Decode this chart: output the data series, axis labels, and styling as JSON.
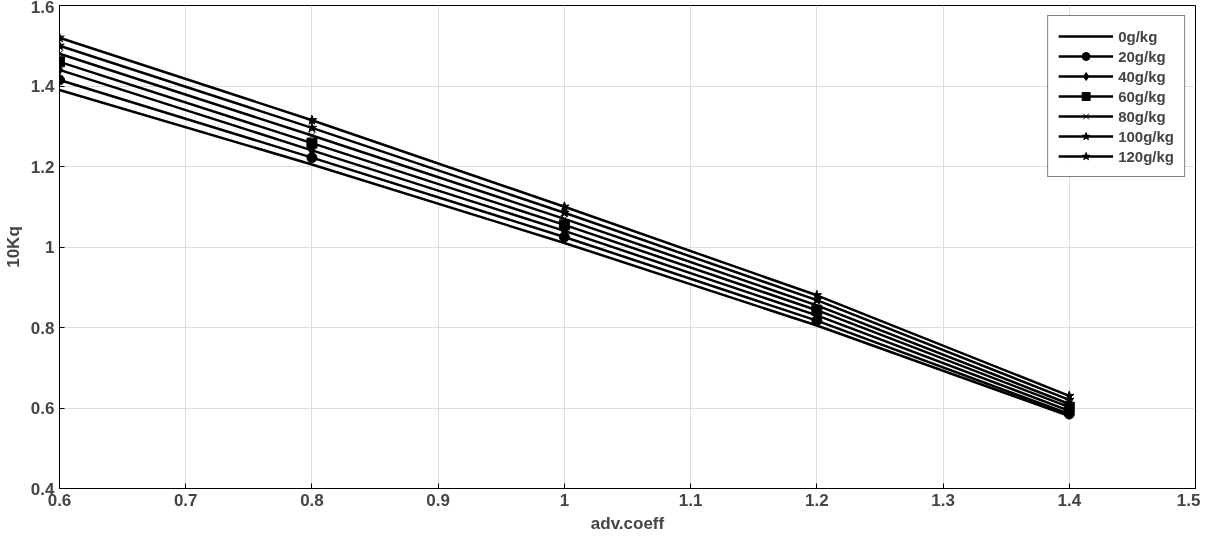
{
  "chart_data": {
    "type": "line",
    "xlabel": "adv.coeff",
    "ylabel": "10Kq",
    "xlim": [
      0.6,
      1.5
    ],
    "ylim": [
      0.4,
      1.6
    ],
    "xticks": [
      0.6,
      0.7,
      0.8,
      0.9,
      1,
      1.1,
      1.2,
      1.3,
      1.4,
      1.5
    ],
    "yticks": [
      0.4,
      0.6,
      0.8,
      1,
      1.2,
      1.4,
      1.6
    ],
    "grid": true,
    "legend": "top right",
    "x": [
      0.6,
      0.8,
      1.0,
      1.2,
      1.4
    ],
    "series": [
      {
        "name": "0g/kg",
        "color": "#000000",
        "marker": "none",
        "values": [
          1.39,
          1.205,
          1.01,
          0.805,
          0.58
        ]
      },
      {
        "name": "20g/kg",
        "color": "#000000",
        "marker": "circle",
        "values": [
          1.415,
          1.222,
          1.025,
          0.817,
          0.585
        ]
      },
      {
        "name": "40g/kg",
        "color": "#000000",
        "marker": "diamond",
        "values": [
          1.44,
          1.24,
          1.04,
          0.83,
          0.593
        ]
      },
      {
        "name": "60g/kg",
        "color": "#000000",
        "marker": "square",
        "values": [
          1.46,
          1.258,
          1.055,
          0.843,
          0.602
        ]
      },
      {
        "name": "80g/kg",
        "color": "#000000",
        "marker": "cross",
        "values": [
          1.48,
          1.277,
          1.07,
          0.855,
          0.61
        ]
      },
      {
        "name": "100g/kg",
        "color": "#000000",
        "marker": "star",
        "values": [
          1.5,
          1.296,
          1.085,
          0.868,
          0.62
        ]
      },
      {
        "name": "120g/kg",
        "color": "#000000",
        "marker": "star",
        "values": [
          1.52,
          1.315,
          1.1,
          0.88,
          0.63
        ]
      }
    ]
  }
}
